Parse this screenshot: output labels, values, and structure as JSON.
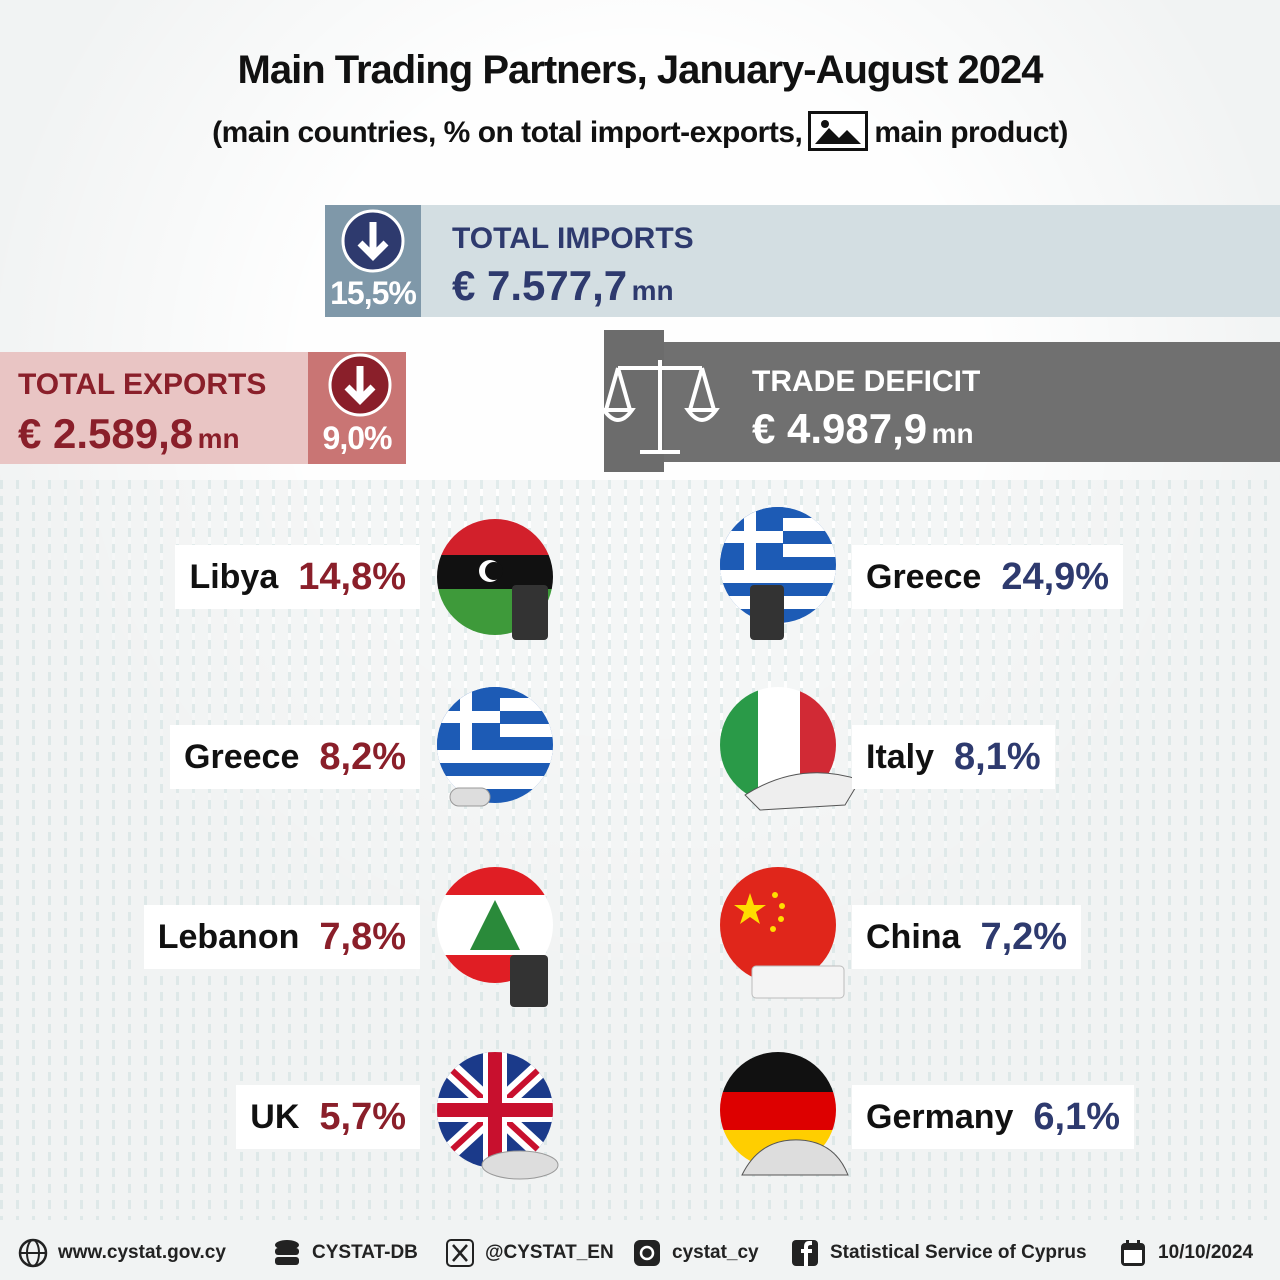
{
  "header": {
    "title": "Main Trading Partners, January-August 2024",
    "subtitle_before_icon": "(main countries, % on total import-exports,",
    "subtitle_after_icon": "main product)"
  },
  "imports": {
    "label": "TOTAL IMPORTS",
    "value": "€ 7.577,7",
    "unit": "mn",
    "change": "15,5%"
  },
  "exports": {
    "label": "TOTAL EXPORTS",
    "value": "€ 2.589,8",
    "unit": "mn",
    "change": "9,0%"
  },
  "deficit": {
    "label": "TRADE DEFICIT",
    "value": "€ 4.987,9",
    "unit": "mn"
  },
  "export_partners": [
    {
      "country": "Libya",
      "share": "14,8%"
    },
    {
      "country": "Greece",
      "share": "8,2%"
    },
    {
      "country": "Lebanon",
      "share": "7,8%"
    },
    {
      "country": "UK",
      "share": "5,7%"
    }
  ],
  "import_partners": [
    {
      "country": "Greece",
      "share": "24,9%"
    },
    {
      "country": "Italy",
      "share": "8,1%"
    },
    {
      "country": "China",
      "share": "7,2%"
    },
    {
      "country": "Germany",
      "share": "6,1%"
    }
  ],
  "footer": [
    "www.cystat.gov.cy",
    "CYSTAT-DB",
    "@CYSTAT_EN",
    "cystat_cy",
    "Statistical Service of Cyprus",
    "10/10/2024"
  ]
}
